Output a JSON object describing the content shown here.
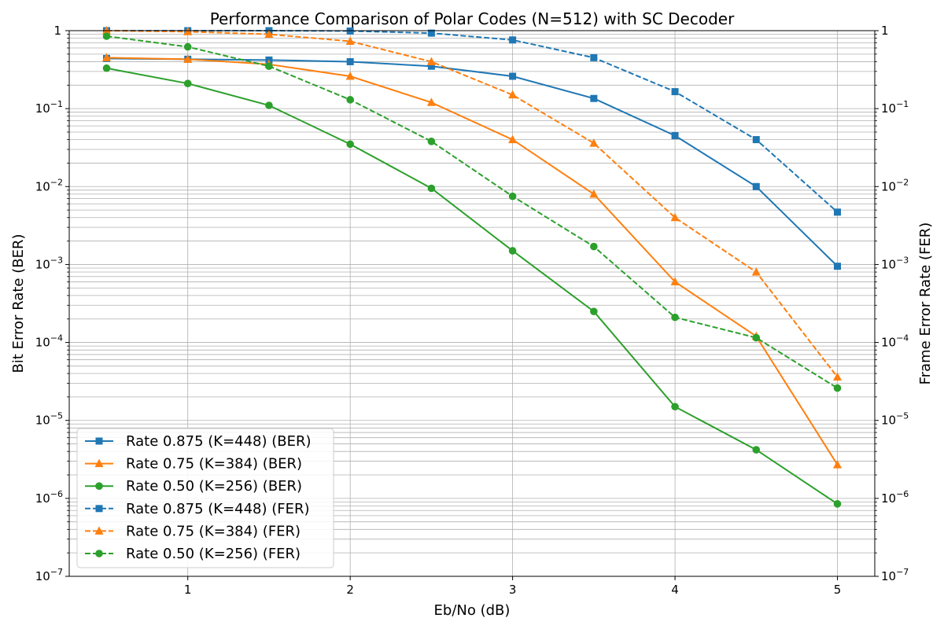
{
  "chart_data": {
    "type": "line",
    "title": "Performance Comparison of Polar Codes (N=512) with SC Decoder",
    "xlabel": "Eb/No (dB)",
    "ylabel": "Bit Error Rate (BER)",
    "ylabel_right": "Frame Error Rate (FER)",
    "x": [
      0.5,
      1,
      1.5,
      2,
      2.5,
      3,
      3.5,
      4,
      4.5,
      5
    ],
    "xticks": [
      1,
      2,
      3,
      4,
      5
    ],
    "xlim": [
      0.27,
      5.23
    ],
    "ylim": [
      1e-07,
      1
    ],
    "yscale": "log",
    "grid": true,
    "legend_position": "lower-left",
    "series": [
      {
        "name": "Rate 0.875 (K=448) (BER)",
        "color": "#1f77b4",
        "linestyle": "solid",
        "marker": "square",
        "values": [
          0.44,
          0.43,
          0.42,
          0.4,
          0.35,
          0.26,
          0.135,
          0.045,
          0.01,
          0.00095
        ]
      },
      {
        "name": "Rate 0.75 (K=384) (BER)",
        "color": "#ff7f0e",
        "linestyle": "solid",
        "marker": "triangle",
        "values": [
          0.45,
          0.43,
          0.37,
          0.26,
          0.12,
          0.04,
          0.008,
          0.0006,
          0.00012,
          2.7e-06
        ]
      },
      {
        "name": "Rate 0.50 (K=256) (BER)",
        "color": "#2ca02c",
        "linestyle": "solid",
        "marker": "circle",
        "values": [
          0.33,
          0.21,
          0.11,
          0.035,
          0.0095,
          0.0015,
          0.00025,
          1.5e-05,
          4.2e-06,
          8.5e-07
        ]
      },
      {
        "name": "Rate 0.875 (K=448) (FER)",
        "color": "#1f77b4",
        "linestyle": "dashed",
        "marker": "square",
        "values": [
          1.0,
          1.0,
          1.0,
          0.99,
          0.93,
          0.76,
          0.45,
          0.165,
          0.04,
          0.0047
        ]
      },
      {
        "name": "Rate 0.75 (K=384) (FER)",
        "color": "#ff7f0e",
        "linestyle": "dashed",
        "marker": "triangle",
        "values": [
          1.0,
          0.97,
          0.9,
          0.73,
          0.4,
          0.15,
          0.036,
          0.004,
          0.0008,
          3.6e-05
        ]
      },
      {
        "name": "Rate 0.50 (K=256) (FER)",
        "color": "#2ca02c",
        "linestyle": "dashed",
        "marker": "circle",
        "values": [
          0.85,
          0.62,
          0.35,
          0.13,
          0.038,
          0.0075,
          0.0017,
          0.00021,
          0.000115,
          2.6e-05
        ]
      }
    ]
  }
}
